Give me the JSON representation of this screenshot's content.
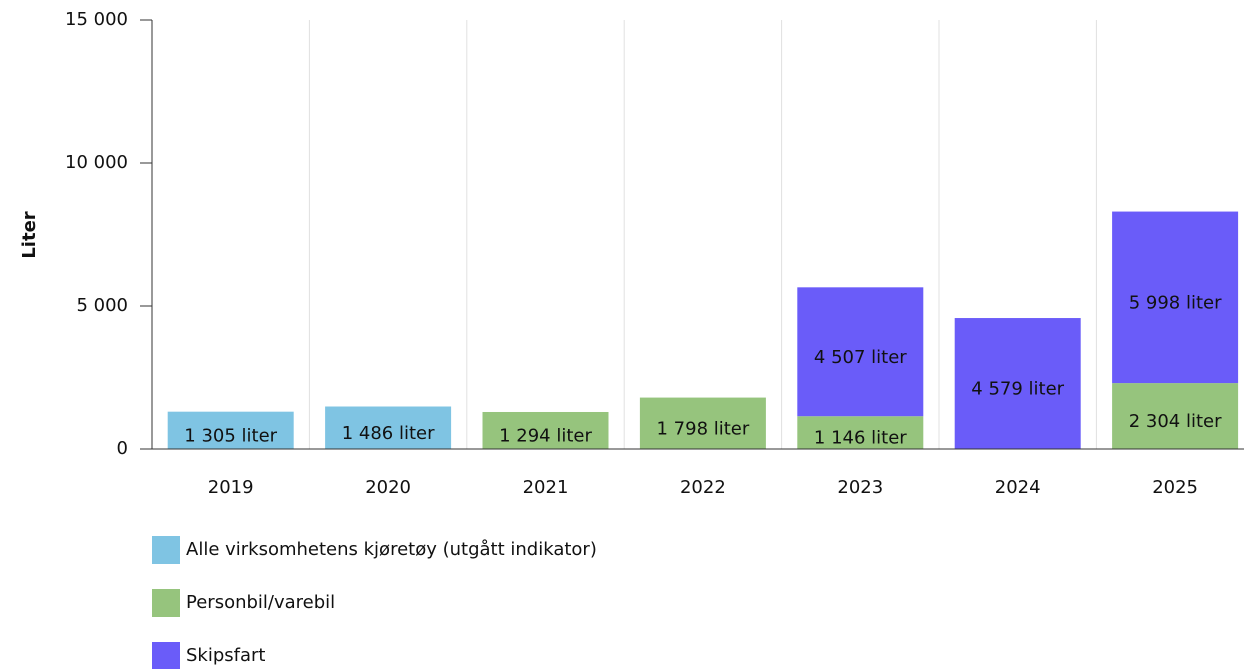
{
  "chart_data": {
    "type": "bar",
    "stacked": true,
    "y_label": "Liter",
    "categories": [
      "2019",
      "2020",
      "2021",
      "2022",
      "2023",
      "2024",
      "2025"
    ],
    "series": [
      {
        "name": "Alle virksomhetens kjøretøy (utgått indikator)",
        "color": "#7fc4e3",
        "values": [
          1305,
          1486,
          null,
          null,
          null,
          null,
          null
        ],
        "value_labels": [
          "1 305 liter",
          "1 486 liter",
          null,
          null,
          null,
          null,
          null
        ]
      },
      {
        "name": "Personbil/varebil",
        "color": "#96c47d",
        "values": [
          null,
          null,
          1294,
          1798,
          1146,
          null,
          2304
        ],
        "value_labels": [
          null,
          null,
          "1 294 liter",
          "1 798 liter",
          "1 146 liter",
          null,
          "2 304 liter"
        ]
      },
      {
        "name": "Skipsfart",
        "color": "#6a5cf9",
        "values": [
          null,
          null,
          null,
          null,
          4507,
          4579,
          5998
        ],
        "value_labels": [
          null,
          null,
          null,
          null,
          "4 507 liter",
          "4 579 liter",
          "5 998 liter"
        ]
      }
    ],
    "ylim": [
      0,
      15000
    ],
    "yticks": [
      0,
      {
        "value": 5000,
        "label": "5 000"
      },
      {
        "value": 10000,
        "label": "10 000"
      },
      {
        "value": 15000,
        "label": "15 000"
      }
    ],
    "grid": true,
    "legend": "bottom-left"
  }
}
